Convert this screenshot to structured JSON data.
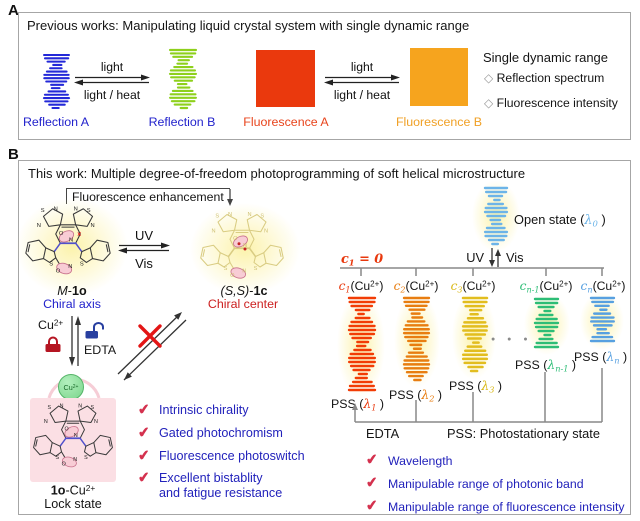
{
  "panel_a": {
    "label": "A",
    "title": "Previous works: Manipulating liquid crystal system with single dynamic range",
    "arrow_forward": "light",
    "arrow_backward": "light / heat",
    "reflection_a": "Reflection A",
    "reflection_b": "Reflection B",
    "fluorescence_a": "Fluorescence A",
    "fluorescence_b": "Fluorescence B",
    "legend_title": "Single dynamic range",
    "legend_items": [
      "Reflection spectrum",
      "Fluorescence intensity"
    ]
  },
  "panel_b": {
    "label": "B",
    "title": "This work: Multiple degree-of-freedom photoprogramming of soft helical microstructure",
    "fluorescence_enhancement": "Fluorescence enhancement",
    "uv": "UV",
    "vis": "Vis",
    "mol_open": {
      "italic": "M",
      "dash": "-",
      "bold": "1o",
      "subtitle": "Chiral axis"
    },
    "mol_closed": {
      "italic": "(S,S)",
      "dash": "-",
      "bold": "1c",
      "subtitle": "Chiral center"
    },
    "cu": {
      "base": "Cu",
      "sup": "2+"
    },
    "edta": "EDTA",
    "lock_complex": {
      "bold": "1o",
      "mid": "-Cu",
      "sup": "2+",
      "subtitle": "Lock state"
    },
    "features_left": [
      "Intrinsic chirality",
      "Gated photochromism",
      "Fluorescence photoswitch",
      "Excellent bistablity"
    ],
    "features_left_cont": "and fatigue resistance",
    "atoms": {
      "s": "S",
      "n": "N",
      "o": "O"
    },
    "right": {
      "open_state_prefix": "Open state (",
      "lambda": "λ",
      "open_sub": "0",
      "close": " )",
      "c1_zero": {
        "c": "c",
        "sub": "1",
        "rest": " = 0"
      },
      "c_letter": "c",
      "cu_open": "(Cu",
      "cu_sup": "2+",
      "cu_close": ")",
      "columns": [
        {
          "sub": "1"
        },
        {
          "sub": "2"
        },
        {
          "sub": "3"
        },
        {
          "sub": "n-1"
        },
        {
          "sub": "n"
        }
      ],
      "pss_prefix": "PSS (",
      "dots": "● ● ●",
      "edta": "EDTA",
      "pss_definition": "PSS: Photostationary state",
      "features": [
        "Wavelength",
        "Manipulable range of photonic band",
        "Manipulable range of fluorescence intensity"
      ]
    }
  },
  "icons": {
    "check": "✔",
    "diamond": "◇"
  },
  "colors": {
    "helix_reflection_a": "#2328d8",
    "helix_reflection_b": "#8ed01c",
    "square_fluorescence_a": "#ea390d",
    "square_fluorescence_b": "#f6a41e",
    "helix_open": "#6cb4e8",
    "helix_1": "#f23c05",
    "helix_2": "#e87d10",
    "helix_3": "#e2bd1e",
    "helix_4": "#2dbd76",
    "helix_5": "#57a0e0",
    "blue_label": "#2222cc",
    "red_label": "#cc2020",
    "feature_text": "#2222bb",
    "check": "#d4314e",
    "c1_zero": "#e8380d",
    "glow": "#fcf2a8",
    "lock_pink": "#fbdfe4",
    "cu_green": "#8fe0a0"
  }
}
